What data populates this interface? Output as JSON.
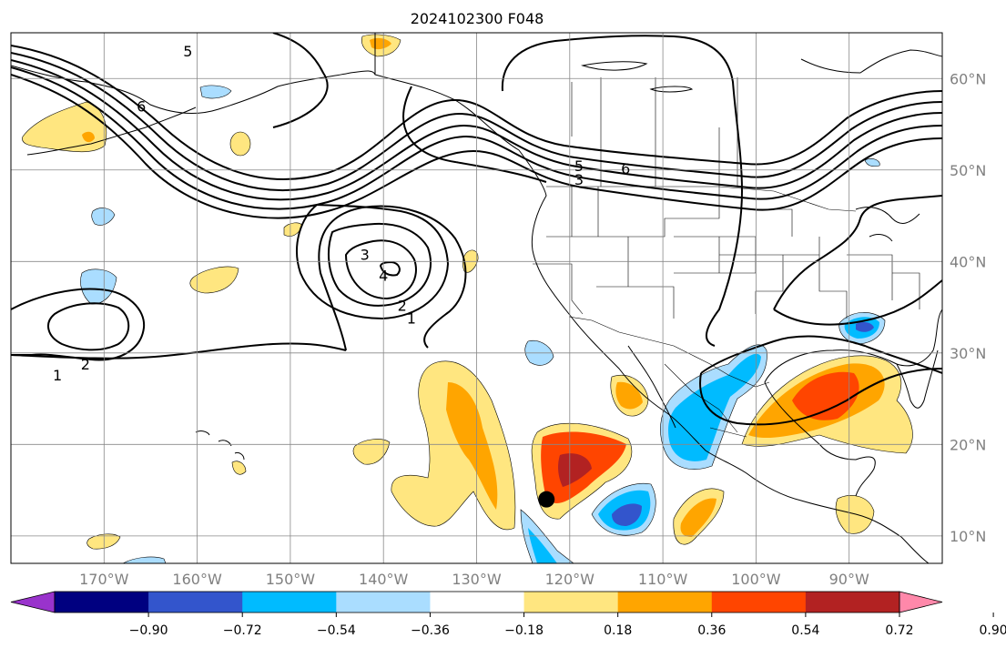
{
  "title": "2024102300 F048",
  "map": {
    "projection": "PlateCarree",
    "lon_range": [
      -180,
      -80
    ],
    "lat_range": [
      7,
      65
    ],
    "lat_labels": [
      {
        "lat": 60,
        "text": "60°N"
      },
      {
        "lat": 50,
        "text": "50°N"
      },
      {
        "lat": 40,
        "text": "40°N"
      },
      {
        "lat": 30,
        "text": "30°N"
      },
      {
        "lat": 20,
        "text": "20°N"
      },
      {
        "lat": 10,
        "text": "10°N"
      }
    ],
    "lon_labels": [
      {
        "lon": -170,
        "text": "170°W"
      },
      {
        "lon": -160,
        "text": "160°W"
      },
      {
        "lon": -150,
        "text": "150°W"
      },
      {
        "lon": -140,
        "text": "140°W"
      },
      {
        "lon": -130,
        "text": "130°W"
      },
      {
        "lon": -120,
        "text": "120°W"
      },
      {
        "lon": -110,
        "text": "110°W"
      },
      {
        "lon": -100,
        "text": "100°W"
      },
      {
        "lon": -90,
        "text": "90°W"
      }
    ],
    "gridlines": true,
    "marker": {
      "lon": -122.5,
      "lat": 14,
      "color": "#000000"
    },
    "contour_labels": [
      {
        "text": "6",
        "lon": -166,
        "lat": 57
      },
      {
        "text": "5",
        "lon": -161,
        "lat": 63
      },
      {
        "text": "5",
        "lon": -119,
        "lat": 50.5
      },
      {
        "text": "3",
        "lon": -119,
        "lat": 49
      },
      {
        "text": "6",
        "lon": -114,
        "lat": 50.2
      },
      {
        "text": "3",
        "lon": -142,
        "lat": 40.8
      },
      {
        "text": "4",
        "lon": -140,
        "lat": 38.5
      },
      {
        "text": "2",
        "lon": -138,
        "lat": 35.2
      },
      {
        "text": "1",
        "lon": -137,
        "lat": 33.8
      },
      {
        "text": "2",
        "lon": -172,
        "lat": 28.8
      },
      {
        "text": "1",
        "lon": -175,
        "lat": 27.6
      }
    ]
  },
  "colorbar": {
    "extend": "both",
    "ticks": [
      "−0.90",
      "−0.72",
      "−0.54",
      "−0.36",
      "−0.18",
      "0.18",
      "0.36",
      "0.54",
      "0.72",
      "0.90"
    ],
    "colors": [
      "#9933cc",
      "#000080",
      "#3355cc",
      "#00bbff",
      "#aaddff",
      "#ffffff",
      "#ffe680",
      "#ffa500",
      "#ff4500",
      "#b22222",
      "#ff88aa"
    ]
  }
}
